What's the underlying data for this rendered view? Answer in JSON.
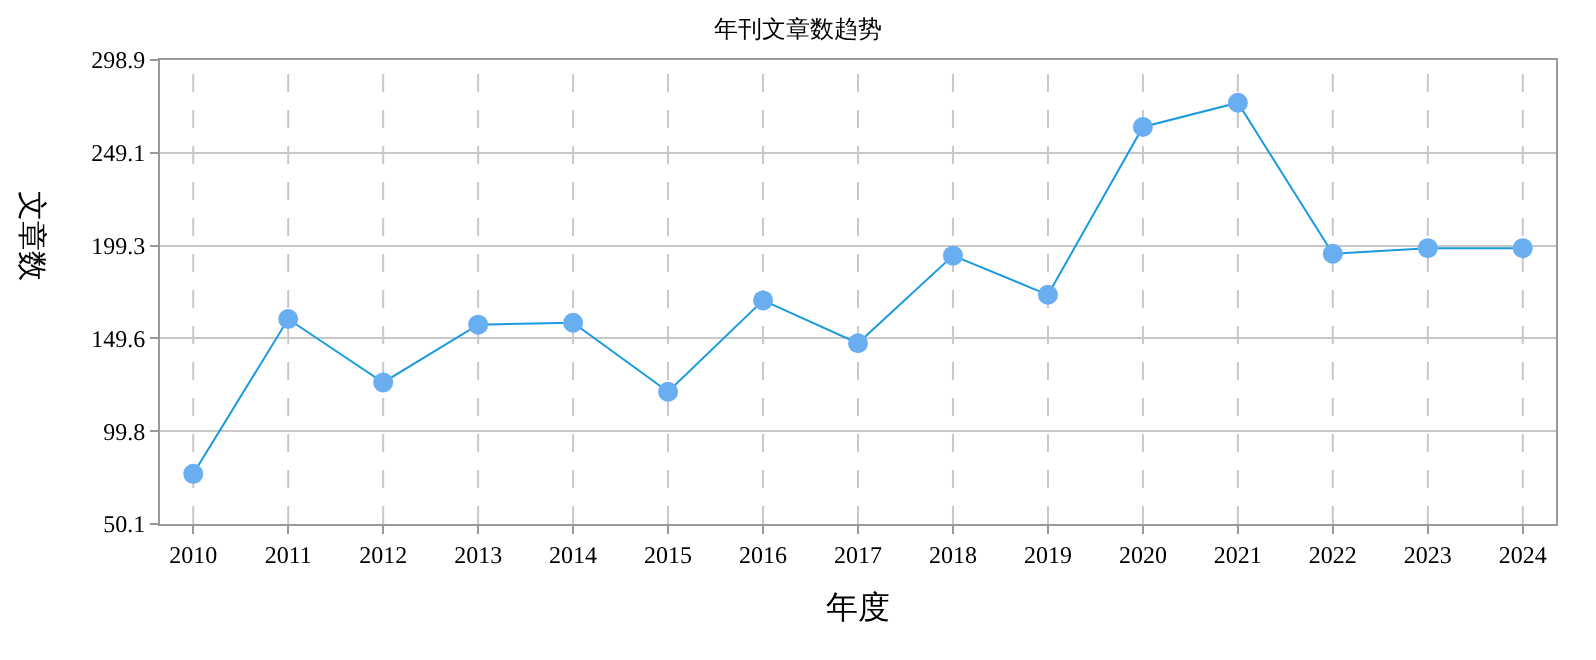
{
  "chart_data": {
    "type": "line",
    "title": "年刊文章数趋势",
    "xlabel": "年度",
    "ylabel": "文章数",
    "categories": [
      "2010",
      "2011",
      "2012",
      "2013",
      "2014",
      "2015",
      "2016",
      "2017",
      "2018",
      "2019",
      "2020",
      "2021",
      "2022",
      "2023",
      "2024"
    ],
    "series": [
      {
        "color": "#1a9be0",
        "values": [
          77,
          160,
          126,
          157,
          158,
          121,
          170,
          147,
          194,
          173,
          263,
          276,
          195,
          198,
          198
        ]
      }
    ],
    "ylim": [
      50.1,
      298.9
    ],
    "yticks": [
      50.1,
      99.8,
      149.6,
      199.3,
      249.1,
      298.9
    ],
    "grid": true,
    "marker": "circle",
    "line_style": "solid"
  }
}
